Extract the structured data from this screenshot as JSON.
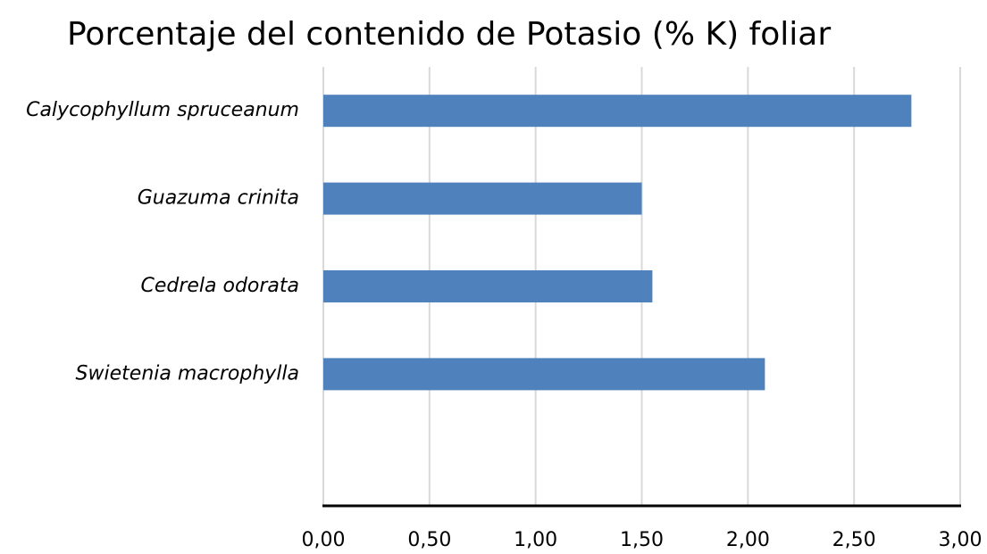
{
  "chart_data": {
    "type": "bar",
    "orientation": "horizontal",
    "title": "Porcentaje del contenido de Potasio (% K) foliar",
    "categories": [
      "Calycophyllum spruceanum",
      "Guazuma crinita",
      "Cedrela odorata",
      "Swietenia macrophylla",
      null
    ],
    "values": [
      2.77,
      1.5,
      1.55,
      2.08,
      null
    ],
    "color": "#4f81bd",
    "xlim": [
      0,
      3
    ],
    "xticks": [
      {
        "value": 0,
        "label": "0,00"
      },
      {
        "value": 0.5,
        "label": "0,50"
      },
      {
        "value": 1,
        "label": "1,00"
      },
      {
        "value": 1.5,
        "label": "1,50"
      },
      {
        "value": 2,
        "label": "2,00"
      },
      {
        "value": 2.5,
        "label": "2,50"
      },
      {
        "value": 3,
        "label": "3,00"
      }
    ],
    "grid": true
  }
}
